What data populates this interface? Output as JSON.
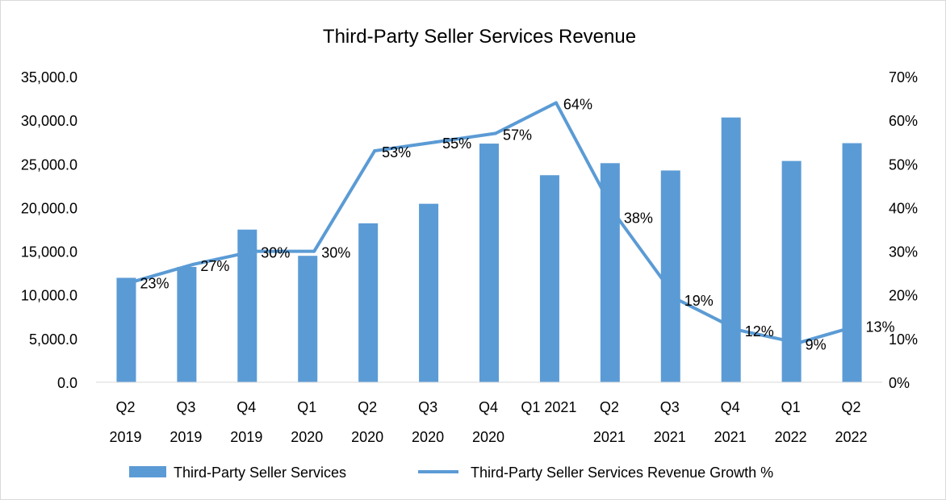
{
  "chart_data": {
    "type": "bar",
    "title": "Third-Party Seller Services Revenue",
    "categories": [
      [
        "Q2",
        "2019"
      ],
      [
        "Q3",
        "2019"
      ],
      [
        "Q4",
        "2019"
      ],
      [
        "Q1",
        "2020"
      ],
      [
        "Q2",
        "2020"
      ],
      [
        "Q3",
        "2020"
      ],
      [
        "Q4",
        "2020"
      ],
      [
        "Q1 2021",
        ""
      ],
      [
        "Q2",
        "2021"
      ],
      [
        "Q3",
        "2021"
      ],
      [
        "Q4",
        "2021"
      ],
      [
        "Q1",
        "2022"
      ],
      [
        "Q2",
        "2022"
      ]
    ],
    "series": [
      {
        "name": "Third-Party Seller Services",
        "type": "bar",
        "axis": "left",
        "color": "#5b9bd5",
        "values": [
          11960,
          13210,
          17480,
          14480,
          18200,
          20440,
          27330,
          23710,
          25090,
          24250,
          30320,
          25340,
          27380
        ]
      },
      {
        "name": "Third-Party Seller Services Revenue Growth %",
        "type": "line",
        "axis": "right",
        "color": "#5b9bd5",
        "values": [
          23,
          27,
          30,
          30,
          53,
          55,
          57,
          64,
          38,
          19,
          12,
          9,
          13
        ],
        "labels": [
          "23%",
          "27%",
          "30%",
          "30%",
          "53%",
          "55%",
          "57%",
          "64%",
          "38%",
          "19%",
          "12%",
          "9%",
          "13%"
        ]
      }
    ],
    "y_left": {
      "range": [
        0,
        35000
      ],
      "ticks": [
        "0.0",
        "5,000.0",
        "10,000.0",
        "15,000.0",
        "20,000.0",
        "25,000.0",
        "30,000.0",
        "35,000.0"
      ]
    },
    "y_right": {
      "range": [
        0,
        70
      ],
      "ticks": [
        "0%",
        "10%",
        "20%",
        "30%",
        "40%",
        "50%",
        "60%",
        "70%"
      ]
    },
    "grid": false,
    "legend_position": "bottom"
  }
}
